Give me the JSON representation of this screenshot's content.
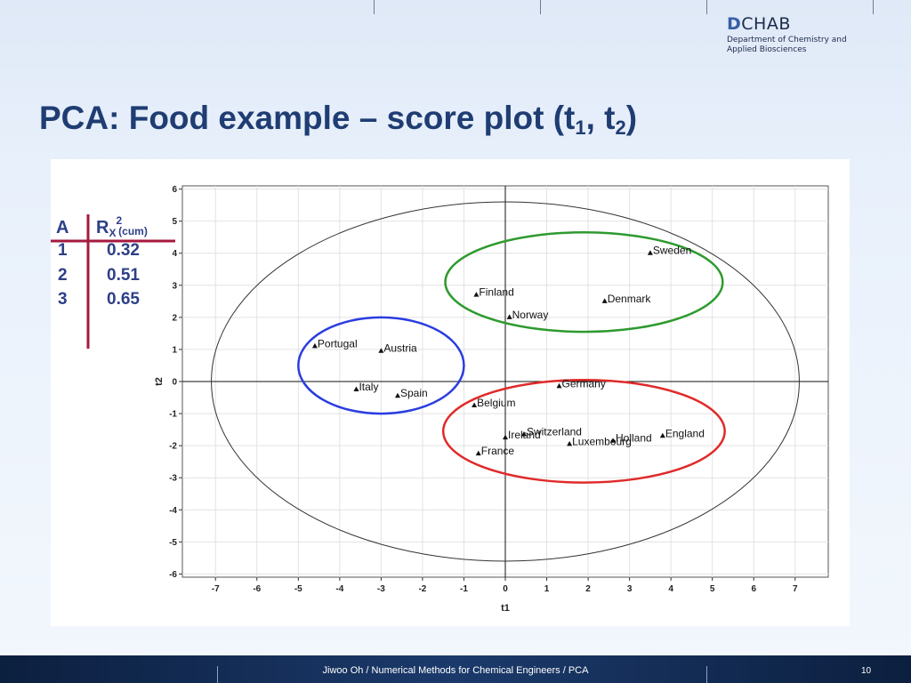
{
  "header": {
    "logo_letter": "D",
    "logo_rest": "CHAB",
    "logo_sub": "Department of Chemistry and Applied Biosciences"
  },
  "title": {
    "main": "PCA: Food example – score plot (t",
    "sub1": "1",
    "sep": ", t",
    "sub2": "2",
    "end": ")"
  },
  "rx_table": {
    "col_a": "A",
    "col_r": "R",
    "col_r_sub": "X",
    "col_r_sup": "2",
    "col_r_note": "(cum)",
    "rows": [
      {
        "a": "1",
        "r": "0.32"
      },
      {
        "a": "2",
        "r": "0.51"
      },
      {
        "a": "3",
        "r": "0.65"
      }
    ]
  },
  "chart_data": {
    "type": "scatter",
    "xlabel": "t1",
    "ylabel": "t2",
    "xlim": [
      -7.8,
      7.8
    ],
    "ylim": [
      -6.1,
      6.1
    ],
    "xticks": [
      -7,
      -6,
      -5,
      -4,
      -3,
      -2,
      -1,
      0,
      1,
      2,
      3,
      4,
      5,
      6,
      7
    ],
    "yticks": [
      6,
      5,
      4,
      3,
      2,
      1,
      0,
      -1,
      -2,
      -3,
      -4,
      -5,
      -6
    ],
    "grid": true,
    "points": [
      {
        "label": "Sweden",
        "x": 3.5,
        "y": 4.0
      },
      {
        "label": "Finland",
        "x": -0.7,
        "y": 2.7
      },
      {
        "label": "Denmark",
        "x": 2.4,
        "y": 2.5
      },
      {
        "label": "Norway",
        "x": 0.1,
        "y": 2.0
      },
      {
        "label": "Portugal",
        "x": -4.6,
        "y": 1.1
      },
      {
        "label": "Austria",
        "x": -3.0,
        "y": 0.95
      },
      {
        "label": "Italy",
        "x": -3.6,
        "y": -0.25
      },
      {
        "label": "Spain",
        "x": -2.6,
        "y": -0.45
      },
      {
        "label": "Germany",
        "x": 1.3,
        "y": -0.15
      },
      {
        "label": "Belgium",
        "x": -0.75,
        "y": -0.75
      },
      {
        "label": "Ireland",
        "x": 0.0,
        "y": -1.75
      },
      {
        "label": "Switzerland",
        "x": 0.45,
        "y": -1.65
      },
      {
        "label": "Luxembourg",
        "x": 1.55,
        "y": -1.95
      },
      {
        "label": "Holland",
        "x": 2.6,
        "y": -1.85
      },
      {
        "label": "England",
        "x": 3.8,
        "y": -1.7
      },
      {
        "label": "France",
        "x": -0.65,
        "y": -2.25
      }
    ],
    "ellipses": [
      {
        "name": "hotelling",
        "color": "#333333",
        "cx": 0.0,
        "cy": 0.0,
        "rx": 7.1,
        "ry": 5.6
      },
      {
        "name": "nordic",
        "color": "#2e9a2e",
        "cx": 1.9,
        "cy": 3.1,
        "rx": 3.35,
        "ry": 1.55
      },
      {
        "name": "southern",
        "color": "#2a3de0",
        "cx": -3.0,
        "cy": 0.5,
        "rx": 2.0,
        "ry": 1.5
      },
      {
        "name": "central",
        "color": "#e02a2a",
        "cx": 1.9,
        "cy": -1.55,
        "rx": 3.4,
        "ry": 1.6
      }
    ]
  },
  "footer": {
    "text": "Jiwoo Oh / Numerical Methods for Chemical Engineers / PCA",
    "page": "10"
  }
}
